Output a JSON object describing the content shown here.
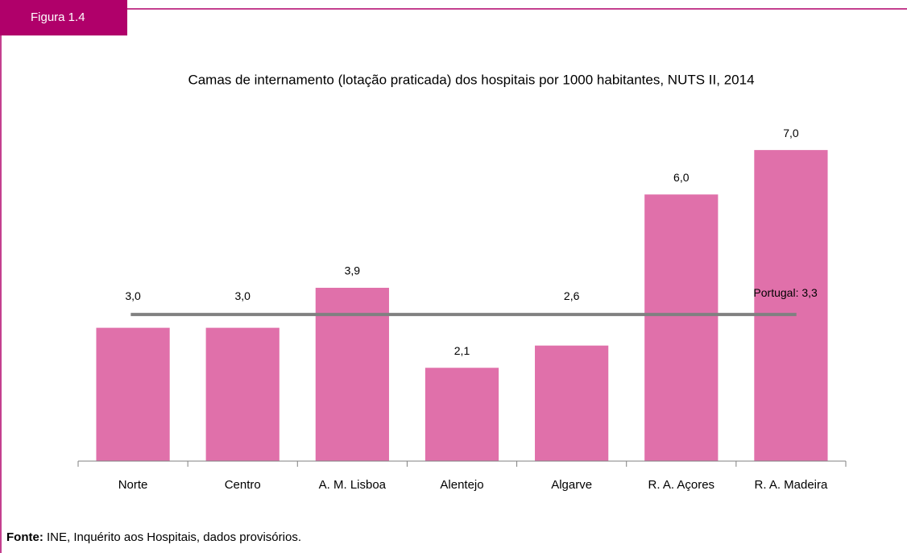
{
  "figure_label": "Figura 1.4",
  "chart_data": {
    "type": "bar",
    "title": "Camas de internamento (lotação praticada) dos hospitais por 1000 habitantes, NUTS II, 2014",
    "categories": [
      "Norte",
      "Centro",
      "A. M. Lisboa",
      "Alentejo",
      "Algarve",
      "R. A. Açores",
      "R. A. Madeira"
    ],
    "values": [
      3.0,
      3.0,
      3.9,
      2.1,
      2.6,
      6.0,
      7.0
    ],
    "value_labels": [
      "3,0",
      "3,0",
      "3,9",
      "2,1",
      "2,6",
      "6,0",
      "7,0"
    ],
    "color": "#e070aa",
    "ylim": [
      0,
      8
    ],
    "reference": {
      "label": "Portugal: 3,3",
      "value": 3.3,
      "color": "#808080"
    }
  },
  "source_label": "Fonte:",
  "source": "INE, Inquérito aos Hospitais, dados provisórios."
}
